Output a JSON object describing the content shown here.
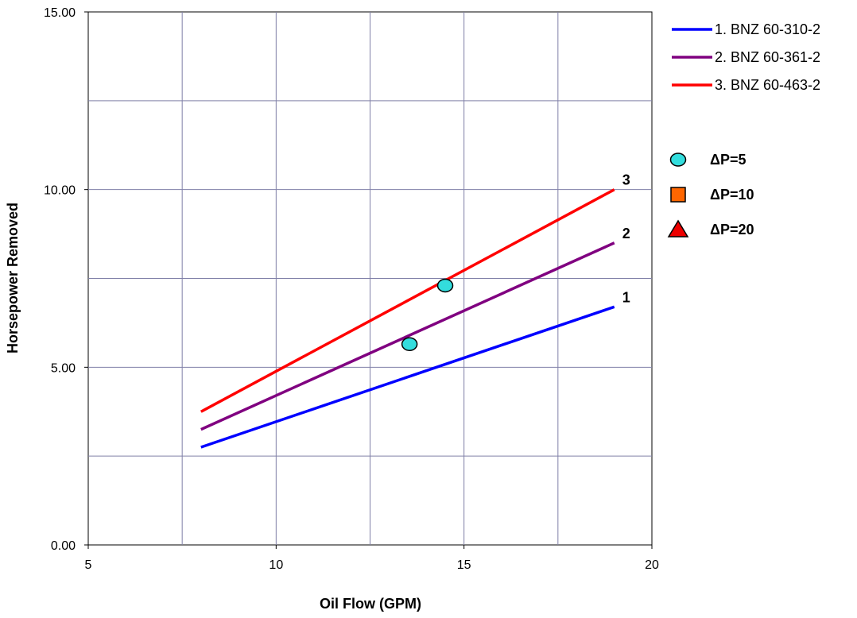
{
  "chart_data": {
    "type": "line",
    "title": "",
    "xlabel": "Oil Flow (GPM)",
    "ylabel": "Horsepower Removed",
    "xlim": [
      5,
      20
    ],
    "ylim": [
      0,
      15
    ],
    "x_ticks": [
      "5",
      "10",
      "15",
      "20"
    ],
    "y_ticks": [
      "0.00",
      "5.00",
      "10.00",
      "15.00"
    ],
    "grid": true,
    "legend_position": "right",
    "series": [
      {
        "name": "1.  BNZ 60-310-2",
        "label": "1",
        "color": "#0000ff",
        "x": [
          8,
          19
        ],
        "y": [
          2.75,
          6.7
        ]
      },
      {
        "name": "2.  BNZ 60-361-2",
        "label": "2",
        "color": "#800080",
        "x": [
          8,
          19
        ],
        "y": [
          3.25,
          8.5
        ]
      },
      {
        "name": "3.  BNZ 60-463-2",
        "label": "3",
        "color": "#ff0000",
        "x": [
          8,
          19
        ],
        "y": [
          3.75,
          10.0
        ]
      }
    ],
    "marker_legend": [
      {
        "name": "ΔP=5",
        "shape": "circle",
        "color": "#33dddd"
      },
      {
        "name": "ΔP=10",
        "shape": "square",
        "color": "#ff6600"
      },
      {
        "name": "ΔP=20",
        "shape": "triangle",
        "color": "#ee0000"
      }
    ],
    "points": [
      {
        "x": 13.55,
        "y": 5.65,
        "shape": "circle",
        "color": "#33dddd",
        "group": "ΔP=5"
      },
      {
        "x": 14.5,
        "y": 7.3,
        "shape": "circle",
        "color": "#33dddd",
        "group": "ΔP=5"
      }
    ]
  }
}
